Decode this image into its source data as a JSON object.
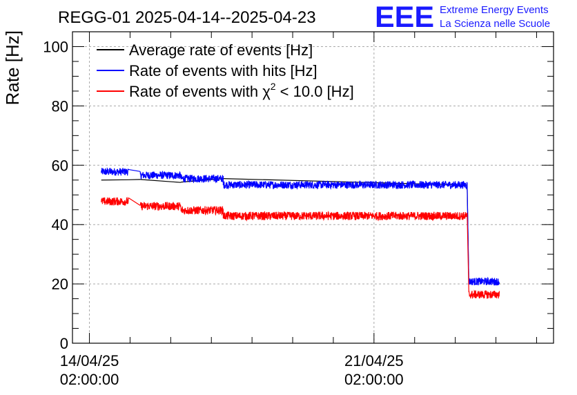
{
  "logo": {
    "letters": "EEE",
    "line1": "Extreme Energy Events",
    "line2": "La Scienza nelle Scuole",
    "color": "#1a1aff"
  },
  "chart_data": {
    "type": "line",
    "title": "REGG-01 2025-04-14--2025-04-23",
    "ylabel": "Rate [Hz]",
    "xlabel": "",
    "ylim": [
      0,
      105
    ],
    "yticks": [
      0,
      20,
      40,
      60,
      80,
      100
    ],
    "xlim": [
      "2025-04-13T16:00",
      "2025-04-25T12:00"
    ],
    "xticks": [
      {
        "x": "2025-04-14T02:00",
        "date_label": "14/04/25",
        "time_label": "02:00:00"
      },
      {
        "x": "2025-04-21T02:00",
        "date_label": "21/04/25",
        "time_label": "02:00:00"
      }
    ],
    "grid": true,
    "legend_position": "top-left",
    "legend": [
      {
        "prefix": "Average rate of events [Hz]",
        "sup": "",
        "suffix": "",
        "color": "#000000"
      },
      {
        "prefix": "Rate of events with hits [Hz]",
        "sup": "",
        "suffix": "",
        "color": "#0000ff"
      },
      {
        "prefix": "Rate of events with χ",
        "sup": "2",
        "suffix": " < 10.0 [Hz]",
        "color": "#ff0000"
      }
    ],
    "series": [
      {
        "name": "Average rate of events [Hz]",
        "color": "#000000",
        "segments": [
          [
            [
              "2025-04-14T09:00",
              55.0
            ],
            [
              "2025-04-15T01:00",
              55.1
            ]
          ],
          [
            [
              "2025-04-15T08:00",
              55.2
            ],
            [
              "2025-04-16T08:00",
              54.2
            ]
          ],
          [
            [
              "2025-04-16T08:00",
              54.3
            ],
            [
              "2025-04-17T09:00",
              55.5
            ]
          ],
          [
            [
              "2025-04-23T09:00",
              53.3
            ],
            [
              "2025-04-23T10:00",
              20.0
            ]
          ]
        ]
      },
      {
        "name": "Rate of events with hits [Hz]",
        "color": "#0000ff",
        "noise": 1.3,
        "segments": [
          [
            [
              "2025-04-14T09:00",
              57.8
            ],
            [
              "2025-04-14T18:00",
              58.0
            ],
            [
              "2025-04-15T01:00",
              57.8
            ]
          ],
          [
            [
              "2025-04-15T08:00",
              58.6
            ],
            [
              "2025-04-15T20:00",
              57.2
            ],
            [
              "2025-04-16T08:00",
              56.6
            ]
          ],
          [
            [
              "2025-04-16T08:00",
              52.5
            ],
            [
              "2025-04-17T09:00",
              55.5
            ]
          ],
          [
            [
              "2025-04-17T09:00",
              54.8
            ],
            [
              "2025-04-18T06:00",
              53.5
            ],
            [
              "2025-04-19T12:00",
              53.8
            ],
            [
              "2025-04-20T08:00",
              54.4
            ],
            [
              "2025-04-21T00:00",
              53.0
            ],
            [
              "2025-04-22T06:00",
              53.7
            ],
            [
              "2025-04-23T09:00",
              53.4
            ]
          ],
          [
            [
              "2025-04-23T10:00",
              19.4
            ],
            [
              "2025-04-23T18:00",
              20.2
            ],
            [
              "2025-04-24T04:00",
              20.8
            ]
          ]
        ]
      },
      {
        "name": "Rate of events with χ2 < 10.0 [Hz]",
        "color": "#ff0000",
        "noise": 1.4,
        "segments": [
          [
            [
              "2025-04-14T09:00",
              49.6
            ],
            [
              "2025-04-14T18:00",
              48.0
            ],
            [
              "2025-04-15T01:00",
              47.8
            ]
          ],
          [
            [
              "2025-04-15T08:00",
              48.2
            ],
            [
              "2025-04-15T20:00",
              47.5
            ],
            [
              "2025-04-16T08:00",
              46.2
            ]
          ],
          [
            [
              "2025-04-16T08:00",
              43.0
            ],
            [
              "2025-04-17T09:00",
              44.8
            ]
          ],
          [
            [
              "2025-04-17T09:00",
              45.0
            ],
            [
              "2025-04-18T06:00",
              44.4
            ],
            [
              "2025-04-19T12:00",
              44.8
            ],
            [
              "2025-04-20T12:00",
              44.6
            ],
            [
              "2025-04-21T00:00",
              42.8
            ],
            [
              "2025-04-22T06:00",
              43.8
            ],
            [
              "2025-04-23T09:00",
              42.9
            ]
          ],
          [
            [
              "2025-04-23T10:00",
              14.6
            ],
            [
              "2025-04-23T18:00",
              15.7
            ],
            [
              "2025-04-24T04:00",
              16.4
            ]
          ]
        ]
      }
    ]
  }
}
